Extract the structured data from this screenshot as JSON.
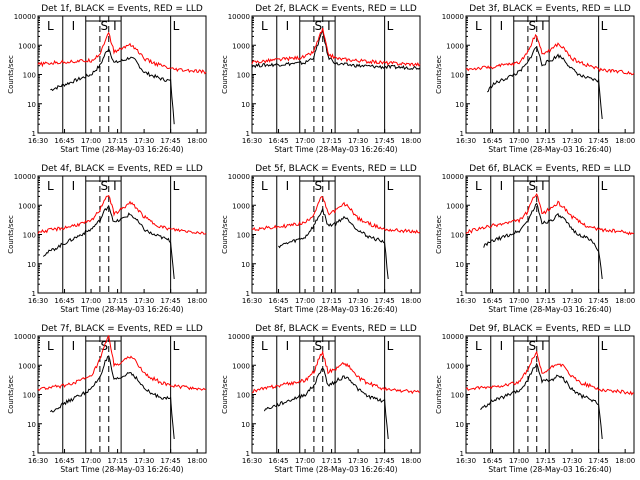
{
  "figure": {
    "ylabel": "Counts/sec",
    "xlabel": "Start Time (28-May-03 16:26:40)",
    "x_ticks": [
      "16:30",
      "16:45",
      "17:00",
      "17:15",
      "17:30",
      "17:45",
      "18:00"
    ],
    "y_ticks": [
      "1",
      "10",
      "100",
      "1000",
      "10000"
    ],
    "interval_labels": [
      "L",
      "I",
      "S",
      "I",
      "L"
    ]
  },
  "colors": {
    "events": "#000000",
    "lld": "#ff0000"
  },
  "chart_data": [
    {
      "type": "line",
      "title": "Det 1f, BLACK = Events, RED = LLD",
      "xlabel": "Start Time (28-May-03 16:26:40)",
      "ylabel": "Counts/sec",
      "y_scale": "log",
      "ylim": [
        1,
        10000
      ],
      "xlim": [
        "16:30",
        "18:05"
      ],
      "series": [
        {
          "name": "Events",
          "color": "#000000",
          "x": [
            "16:37",
            "16:45",
            "17:00",
            "17:05",
            "17:08",
            "17:10",
            "17:13",
            "17:18",
            "17:22",
            "17:25",
            "17:30",
            "17:35",
            "17:40",
            "17:45",
            "17:47"
          ],
          "values": [
            30,
            45,
            100,
            200,
            500,
            800,
            250,
            300,
            380,
            300,
            120,
            90,
            70,
            60,
            2
          ]
        },
        {
          "name": "LLD",
          "color": "#ff0000",
          "x": [
            "16:30",
            "16:45",
            "17:00",
            "17:05",
            "17:08",
            "17:10",
            "17:13",
            "17:18",
            "17:22",
            "17:25",
            "17:30",
            "17:35",
            "17:40",
            "17:45",
            "18:05"
          ],
          "values": [
            220,
            270,
            300,
            500,
            1500,
            2500,
            600,
            800,
            1100,
            800,
            350,
            250,
            200,
            150,
            120
          ]
        }
      ]
    },
    {
      "type": "line",
      "title": "Det 2f, BLACK = Events, RED = LLD",
      "xlabel": "Start Time (28-May-03 16:26:40)",
      "ylabel": "Counts/sec",
      "y_scale": "log",
      "ylim": [
        1,
        10000
      ],
      "xlim": [
        "16:30",
        "18:05"
      ],
      "series": [
        {
          "name": "Events",
          "color": "#000000",
          "x": [
            "16:30",
            "16:45",
            "17:00",
            "17:05",
            "17:08",
            "17:10",
            "17:13",
            "17:18",
            "17:30",
            "17:45",
            "18:05"
          ],
          "values": [
            200,
            220,
            250,
            400,
            1500,
            3000,
            400,
            230,
            200,
            180,
            170
          ]
        },
        {
          "name": "LLD",
          "color": "#ff0000",
          "x": [
            "16:30",
            "16:45",
            "17:00",
            "17:05",
            "17:08",
            "17:10",
            "17:13",
            "17:18",
            "17:30",
            "17:45",
            "18:05"
          ],
          "values": [
            260,
            320,
            400,
            600,
            2000,
            3500,
            500,
            350,
            300,
            250,
            220
          ]
        }
      ]
    },
    {
      "type": "line",
      "title": "Det 3f, BLACK = Events, RED = LLD",
      "xlabel": "Start Time (28-May-03 16:26:40)",
      "ylabel": "Counts/sec",
      "y_scale": "log",
      "ylim": [
        1,
        10000
      ],
      "xlim": [
        "16:30",
        "18:05"
      ],
      "series": [
        {
          "name": "Events",
          "color": "#000000",
          "x": [
            "16:42",
            "16:45",
            "17:00",
            "17:05",
            "17:08",
            "17:10",
            "17:13",
            "17:18",
            "17:22",
            "17:25",
            "17:30",
            "17:35",
            "17:40",
            "17:45",
            "17:47"
          ],
          "values": [
            25,
            45,
            120,
            250,
            600,
            900,
            220,
            300,
            450,
            350,
            150,
            90,
            70,
            60,
            3
          ]
        },
        {
          "name": "LLD",
          "color": "#ff0000",
          "x": [
            "16:30",
            "16:45",
            "17:00",
            "17:05",
            "17:08",
            "17:10",
            "17:13",
            "17:18",
            "17:22",
            "17:25",
            "17:30",
            "17:35",
            "17:40",
            "17:45",
            "18:05"
          ],
          "values": [
            150,
            180,
            250,
            600,
            1600,
            2300,
            500,
            700,
            1100,
            800,
            350,
            250,
            200,
            150,
            110
          ]
        }
      ]
    },
    {
      "type": "line",
      "title": "Det 4f, BLACK = Events, RED = LLD",
      "xlabel": "Start Time (28-May-03 16:26:40)",
      "ylabel": "Counts/sec",
      "y_scale": "log",
      "ylim": [
        1,
        10000
      ],
      "xlim": [
        "16:30",
        "18:05"
      ],
      "series": [
        {
          "name": "Events",
          "color": "#000000",
          "x": [
            "16:33",
            "16:45",
            "17:00",
            "17:05",
            "17:08",
            "17:10",
            "17:13",
            "17:18",
            "17:22",
            "17:25",
            "17:30",
            "17:35",
            "17:40",
            "17:45",
            "17:47"
          ],
          "values": [
            20,
            50,
            150,
            300,
            700,
            1000,
            250,
            350,
            500,
            350,
            150,
            100,
            80,
            60,
            3
          ]
        },
        {
          "name": "LLD",
          "color": "#ff0000",
          "x": [
            "16:30",
            "16:45",
            "17:00",
            "17:05",
            "17:08",
            "17:10",
            "17:13",
            "17:18",
            "17:22",
            "17:25",
            "17:30",
            "17:35",
            "17:40",
            "17:45",
            "18:05"
          ],
          "values": [
            120,
            170,
            280,
            700,
            1800,
            2300,
            500,
            800,
            1200,
            900,
            400,
            250,
            180,
            150,
            110
          ]
        }
      ]
    },
    {
      "type": "line",
      "title": "Det 5f, BLACK = Events, RED = LLD",
      "xlabel": "Start Time (28-May-03 16:26:40)",
      "ylabel": "Counts/sec",
      "y_scale": "log",
      "ylim": [
        1,
        10000
      ],
      "xlim": [
        "16:30",
        "18:05"
      ],
      "series": [
        {
          "name": "Events",
          "color": "#000000",
          "x": [
            "16:45",
            "17:00",
            "17:05",
            "17:08",
            "17:10",
            "17:13",
            "17:18",
            "17:22",
            "17:25",
            "17:30",
            "17:35",
            "17:40",
            "17:45",
            "17:47"
          ],
          "values": [
            40,
            80,
            200,
            450,
            700,
            200,
            250,
            400,
            300,
            140,
            90,
            70,
            55,
            3
          ]
        },
        {
          "name": "LLD",
          "color": "#ff0000",
          "x": [
            "16:30",
            "16:45",
            "17:00",
            "17:05",
            "17:08",
            "17:10",
            "17:13",
            "17:18",
            "17:22",
            "17:25",
            "17:30",
            "17:35",
            "17:40",
            "17:45",
            "18:05"
          ],
          "values": [
            150,
            180,
            250,
            500,
            1400,
            2000,
            500,
            700,
            1100,
            850,
            350,
            250,
            190,
            150,
            120
          ]
        }
      ]
    },
    {
      "type": "line",
      "title": "Det 6f, BLACK = Events, RED = LLD",
      "xlabel": "Start Time (28-May-03 16:26:40)",
      "ylabel": "Counts/sec",
      "y_scale": "log",
      "ylim": [
        1,
        10000
      ],
      "xlim": [
        "16:30",
        "18:05"
      ],
      "series": [
        {
          "name": "Events",
          "color": "#000000",
          "x": [
            "16:40",
            "16:45",
            "17:00",
            "17:05",
            "17:08",
            "17:10",
            "17:13",
            "17:18",
            "17:22",
            "17:25",
            "17:30",
            "17:35",
            "17:40",
            "17:45",
            "17:47"
          ],
          "values": [
            40,
            60,
            130,
            300,
            700,
            1100,
            250,
            300,
            450,
            350,
            150,
            90,
            70,
            30,
            3
          ]
        },
        {
          "name": "LLD",
          "color": "#ff0000",
          "x": [
            "16:30",
            "16:45",
            "17:00",
            "17:05",
            "17:08",
            "17:10",
            "17:13",
            "17:18",
            "17:22",
            "17:25",
            "17:30",
            "17:35",
            "17:40",
            "17:45",
            "18:05"
          ],
          "values": [
            120,
            200,
            300,
            600,
            1800,
            2400,
            500,
            800,
            1200,
            900,
            400,
            250,
            180,
            150,
            110
          ]
        }
      ]
    },
    {
      "type": "line",
      "title": "Det 7f, BLACK = Events, RED = LLD",
      "xlabel": "Start Time (28-May-03 16:26:40)",
      "ylabel": "Counts/sec",
      "y_scale": "log",
      "ylim": [
        1,
        10000
      ],
      "xlim": [
        "16:30",
        "18:05"
      ],
      "series": [
        {
          "name": "Events",
          "color": "#000000",
          "x": [
            "16:37",
            "16:45",
            "17:00",
            "17:05",
            "17:08",
            "17:10",
            "17:13",
            "17:18",
            "17:22",
            "17:25",
            "17:30",
            "17:35",
            "17:40",
            "17:45",
            "17:47"
          ],
          "values": [
            25,
            50,
            150,
            400,
            1300,
            2000,
            300,
            400,
            600,
            400,
            160,
            100,
            80,
            70,
            3
          ]
        },
        {
          "name": "LLD",
          "color": "#ff0000",
          "x": [
            "16:30",
            "16:45",
            "17:00",
            "17:05",
            "17:08",
            "17:10",
            "17:13",
            "17:18",
            "17:22",
            "17:25",
            "17:30",
            "17:35",
            "17:40",
            "17:45",
            "18:05"
          ],
          "values": [
            150,
            200,
            400,
            1500,
            5000,
            10000,
            1000,
            1300,
            2000,
            1500,
            500,
            350,
            250,
            200,
            150
          ]
        }
      ]
    },
    {
      "type": "line",
      "title": "Det 8f, BLACK = Events, RED = LLD",
      "xlabel": "Start Time (28-May-03 16:26:40)",
      "ylabel": "Counts/sec",
      "y_scale": "log",
      "ylim": [
        1,
        10000
      ],
      "xlim": [
        "16:30",
        "18:05"
      ],
      "series": [
        {
          "name": "Events",
          "color": "#000000",
          "x": [
            "16:37",
            "16:45",
            "17:00",
            "17:05",
            "17:08",
            "17:10",
            "17:13",
            "17:18",
            "17:22",
            "17:25",
            "17:30",
            "17:35",
            "17:40",
            "17:45",
            "17:47"
          ],
          "values": [
            30,
            45,
            100,
            200,
            500,
            900,
            200,
            300,
            400,
            350,
            150,
            90,
            70,
            60,
            3
          ]
        },
        {
          "name": "LLD",
          "color": "#ff0000",
          "x": [
            "16:30",
            "16:45",
            "17:00",
            "17:05",
            "17:08",
            "17:10",
            "17:13",
            "17:18",
            "17:22",
            "17:25",
            "17:30",
            "17:35",
            "17:40",
            "17:45",
            "18:05"
          ],
          "values": [
            130,
            200,
            300,
            600,
            1800,
            2600,
            600,
            800,
            1200,
            900,
            380,
            250,
            200,
            150,
            120
          ]
        }
      ]
    },
    {
      "type": "line",
      "title": "Det 9f, BLACK = Events, RED = LLD",
      "xlabel": "Start Time (28-May-03 16:26:40)",
      "ylabel": "Counts/sec",
      "y_scale": "log",
      "ylim": [
        1,
        10000
      ],
      "xlim": [
        "16:30",
        "18:05"
      ],
      "series": [
        {
          "name": "Events",
          "color": "#000000",
          "x": [
            "16:38",
            "16:45",
            "17:00",
            "17:05",
            "17:08",
            "17:10",
            "17:13",
            "17:18",
            "17:22",
            "17:25",
            "17:30",
            "17:35",
            "17:40",
            "17:45",
            "17:47"
          ],
          "values": [
            30,
            60,
            130,
            300,
            800,
            1000,
            300,
            300,
            450,
            350,
            150,
            90,
            70,
            50,
            3
          ]
        },
        {
          "name": "LLD",
          "color": "#ff0000",
          "x": [
            "16:30",
            "16:45",
            "17:00",
            "17:05",
            "17:08",
            "17:10",
            "17:13",
            "17:18",
            "17:22",
            "17:25",
            "17:30",
            "17:35",
            "17:40",
            "17:45",
            "18:05"
          ],
          "values": [
            150,
            180,
            260,
            700,
            1800,
            2500,
            500,
            800,
            1200,
            900,
            400,
            250,
            200,
            150,
            110
          ]
        }
      ]
    }
  ]
}
